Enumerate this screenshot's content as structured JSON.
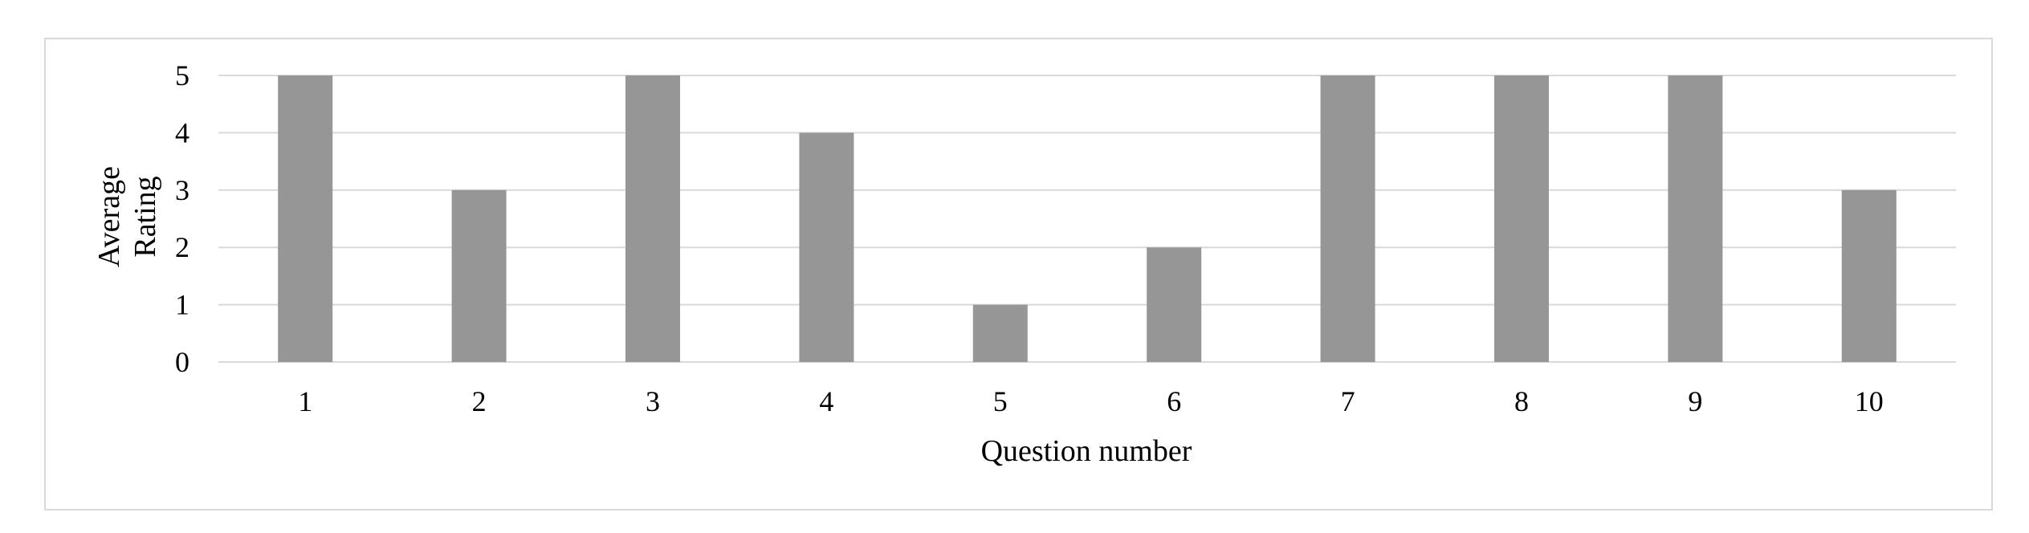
{
  "chart_data": {
    "type": "bar",
    "categories": [
      "1",
      "2",
      "3",
      "4",
      "5",
      "6",
      "7",
      "8",
      "9",
      "10"
    ],
    "values": [
      5,
      3,
      5,
      4,
      1,
      2,
      5,
      5,
      5,
      3
    ],
    "xlabel": "Question number",
    "ylabel_lines": [
      "Average",
      "Rating"
    ],
    "ylim": [
      0,
      5
    ],
    "yticks": [
      "0",
      "1",
      "2",
      "3",
      "4",
      "5"
    ],
    "grid": true,
    "bar_color": "#969696",
    "grid_color": "#d9d9d9"
  }
}
